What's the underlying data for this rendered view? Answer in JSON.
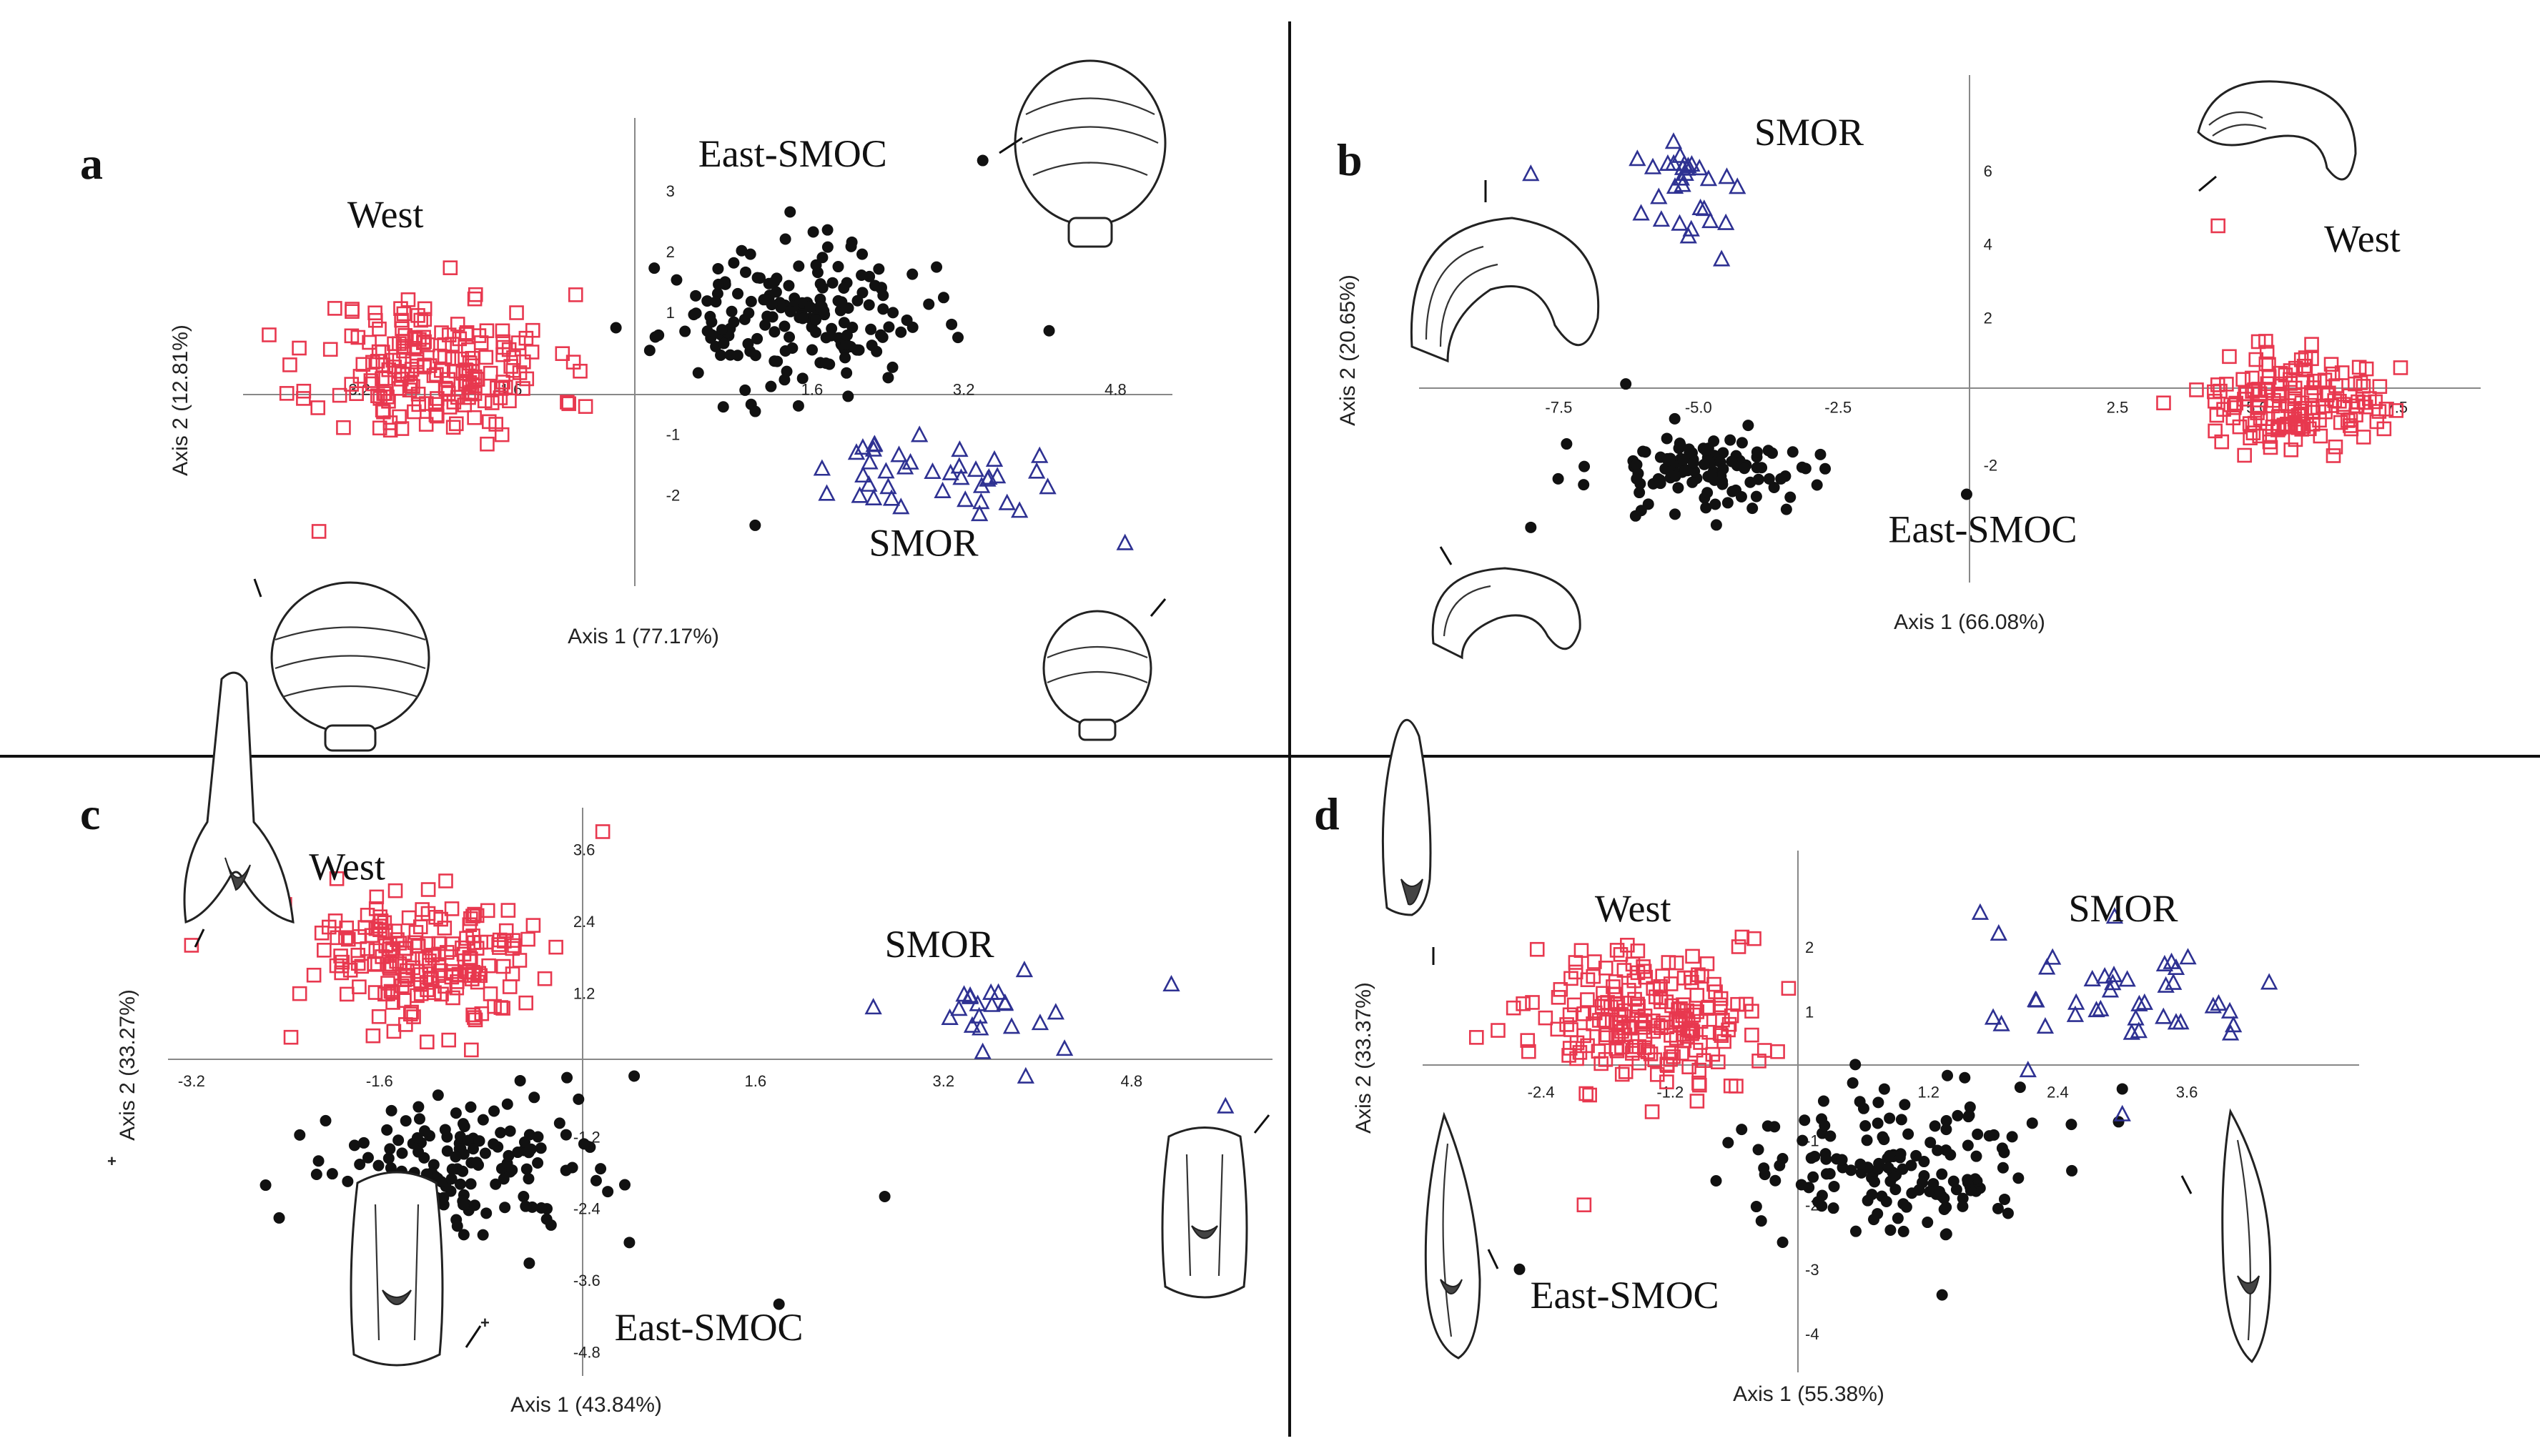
{
  "figure": {
    "panels": [
      "a",
      "b",
      "c",
      "d"
    ]
  },
  "chart_data": [
    {
      "type": "scatter",
      "panel": "a",
      "xlabel": "Axis 1 (77.17%)",
      "ylabel": "Axis 2 (12.81%)",
      "xlim": [
        -4.4,
        5.4
      ],
      "ylim": [
        -3.5,
        4.2
      ],
      "xticks": [
        "-3.2",
        "-1.6",
        "1.6",
        "3.2",
        "4.8"
      ],
      "xtick_values": [
        -3.2,
        -1.6,
        1.6,
        3.2,
        4.8
      ],
      "yticks": [
        "3",
        "2",
        "1",
        "-1",
        "-2"
      ],
      "ytick_values": [
        3,
        2,
        1,
        -1,
        -2
      ],
      "groups": [
        {
          "name": "West",
          "marker": "square",
          "color": "#e8384f",
          "center": [
            -2.35,
            0.1
          ],
          "spread": [
            1.05,
            1.0
          ],
          "n": 190,
          "seed": 11,
          "extra": [
            [
              -3.6,
              -2.6
            ]
          ]
        },
        {
          "name": "East-SMOC",
          "marker": "dot",
          "color": "#111111",
          "center": [
            1.4,
            0.9
          ],
          "spread": [
            1.15,
            0.95
          ],
          "n": 175,
          "seed": 23,
          "extra": [
            [
              3.4,
              3.5
            ],
            [
              4.1,
              0.7
            ],
            [
              1.0,
              -2.5
            ]
          ]
        },
        {
          "name": "SMOR",
          "marker": "triangle",
          "color": "#2e3192",
          "center": [
            2.85,
            -1.75
          ],
          "spread": [
            0.9,
            0.5
          ],
          "n": 40,
          "seed": 37,
          "extra": [
            [
              4.9,
              -2.8
            ]
          ]
        }
      ],
      "label_positions": {
        "West": [
          -3.3,
          2.4
        ],
        "East-SMOC": [
          0.4,
          3.4
        ],
        "SMOR": [
          2.2,
          -3.0
        ]
      }
    },
    {
      "type": "scatter",
      "panel": "b",
      "xlabel": "Axis 1 (66.08%)",
      "ylabel": "Axis 2 (20.65%)",
      "xlim": [
        -10.0,
        9.0
      ],
      "ylim": [
        -5.2,
        8.6
      ],
      "xticks": [
        "-7.5",
        "-5.0",
        "-2.5",
        "2.5",
        "5.0",
        "7.5"
      ],
      "xtick_values": [
        -7.5,
        -5.0,
        -2.5,
        2.5,
        5.0,
        7.5
      ],
      "yticks": [
        "6",
        "4",
        "2",
        "-2"
      ],
      "ytick_values": [
        6,
        4,
        2,
        -2
      ],
      "groups": [
        {
          "name": "SMOR",
          "marker": "triangle",
          "color": "#2e3192",
          "center": [
            -5.2,
            5.4
          ],
          "spread": [
            0.9,
            1.3
          ],
          "n": 30,
          "seed": 41,
          "extra": [
            [
              -8.0,
              5.9
            ]
          ]
        },
        {
          "name": "East-SMOC",
          "marker": "dot",
          "color": "#111111",
          "center": [
            -4.8,
            -2.1
          ],
          "spread": [
            1.7,
            0.9
          ],
          "n": 120,
          "seed": 53,
          "extra": [
            [
              -8.0,
              -3.7
            ],
            [
              -6.3,
              0.2
            ],
            [
              -0.2,
              -2.8
            ]
          ]
        },
        {
          "name": "West",
          "marker": "square",
          "color": "#e8384f",
          "center": [
            5.6,
            -0.4
          ],
          "spread": [
            1.3,
            1.1
          ],
          "n": 150,
          "seed": 67,
          "extra": [
            [
              4.3,
              4.5
            ]
          ]
        }
      ],
      "label_positions": {
        "SMOR": [
          -4.0,
          6.7
        ],
        "West": [
          6.2,
          3.8
        ],
        "East-SMOC": [
          -1.6,
          -4.1
        ]
      }
    },
    {
      "type": "scatter",
      "panel": "c",
      "xlabel": "Axis 1 (43.84%)",
      "ylabel": "Axis 2 (33.27%)",
      "xlim": [
        -3.4,
        6.0
      ],
      "ylim": [
        -5.2,
        4.3
      ],
      "xticks": [
        "-3.2",
        "-1.6",
        "1.6",
        "3.2",
        "4.8"
      ],
      "xtick_values": [
        -3.2,
        -1.6,
        1.6,
        3.2,
        4.8
      ],
      "yticks": [
        "3.6",
        "2.4",
        "1.2",
        "-1.2",
        "-2.4",
        "-3.6",
        "-4.8"
      ],
      "ytick_values": [
        3.6,
        2.4,
        1.2,
        -1.2,
        -2.4,
        -3.6,
        -4.8
      ],
      "groups": [
        {
          "name": "West",
          "marker": "square",
          "color": "#e8384f",
          "center": [
            -1.2,
            1.7
          ],
          "spread": [
            0.9,
            1.0
          ],
          "n": 185,
          "seed": 71,
          "extra": [
            [
              -3.2,
              2.0
            ],
            [
              0.3,
              3.9
            ]
          ]
        },
        {
          "name": "East-SMOC",
          "marker": "dot",
          "color": "#111111",
          "center": [
            -0.9,
            -1.7
          ],
          "spread": [
            1.0,
            1.0
          ],
          "n": 150,
          "seed": 83,
          "extra": [
            [
              2.7,
              -2.2
            ],
            [
              1.8,
              -4.0
            ]
          ]
        },
        {
          "name": "SMOR",
          "marker": "triangle",
          "color": "#2e3192",
          "center": [
            3.3,
            0.9
          ],
          "spread": [
            1.0,
            0.55
          ],
          "n": 22,
          "seed": 97,
          "extra": [
            [
              5.6,
              -0.7
            ],
            [
              3.9,
              -0.2
            ]
          ]
        }
      ],
      "label_positions": {
        "West": [
          -2.2,
          3.1
        ],
        "SMOR": [
          2.7,
          1.8
        ],
        "East-SMOC": [
          0.4,
          -4.6
        ]
      }
    },
    {
      "type": "scatter",
      "panel": "d",
      "xlabel": "Axis 1 (55.38%)",
      "ylabel": "Axis 2 (33.37%)",
      "xlim": [
        -3.5,
        5.2
      ],
      "ylim": [
        -4.6,
        3.5
      ],
      "xticks": [
        "-2.4",
        "-1.2",
        "1.2",
        "2.4",
        "3.6"
      ],
      "xtick_values": [
        -2.4,
        -1.2,
        1.2,
        2.4,
        3.6
      ],
      "yticks": [
        "2",
        "1",
        "-1",
        "-2",
        "-3",
        "-4"
      ],
      "ytick_values": [
        2,
        1,
        -1,
        -2,
        -3,
        -4
      ],
      "groups": [
        {
          "name": "West",
          "marker": "square",
          "color": "#e8384f",
          "center": [
            -1.4,
            0.9
          ],
          "spread": [
            0.85,
            0.9
          ],
          "n": 200,
          "seed": 101,
          "extra": [
            [
              -3.0,
              0.6
            ],
            [
              -2.0,
              -2.0
            ]
          ]
        },
        {
          "name": "East-SMOC",
          "marker": "dot",
          "color": "#111111",
          "center": [
            0.9,
            -1.4
          ],
          "spread": [
            1.2,
            0.95
          ],
          "n": 150,
          "seed": 113,
          "extra": [
            [
              -2.6,
              -3.0
            ],
            [
              3.0,
              -0.2
            ]
          ]
        },
        {
          "name": "SMOR",
          "marker": "triangle",
          "color": "#2e3192",
          "center": [
            3.1,
            1.2
          ],
          "spread": [
            1.0,
            1.0
          ],
          "n": 40,
          "seed": 127,
          "extra": [
            [
              3.0,
              -0.6
            ],
            [
              1.8,
              0.9
            ]
          ]
        }
      ],
      "label_positions": {
        "West": [
          -1.9,
          2.4
        ],
        "SMOR": [
          2.5,
          2.4
        ],
        "East-SMOC": [
          -2.5,
          -3.6
        ]
      }
    }
  ]
}
